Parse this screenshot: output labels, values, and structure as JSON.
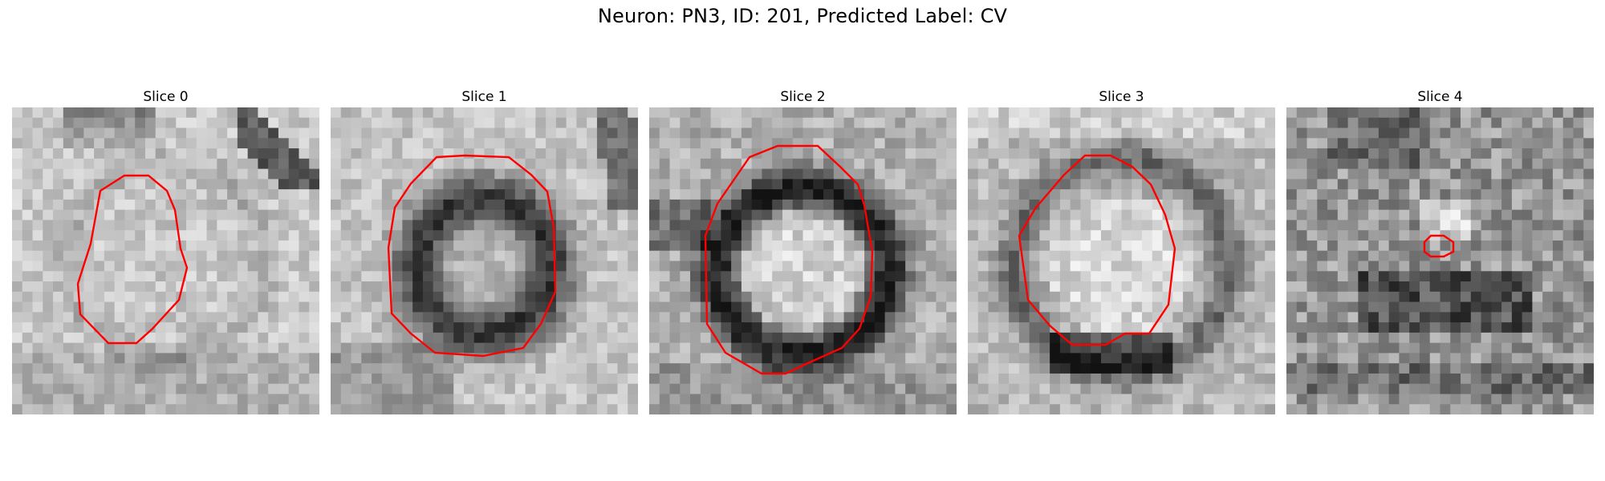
{
  "figure": {
    "title": "Neuron: PN3, ID: 201, Predicted Label: CV"
  },
  "panels": [
    {
      "title": "Slice 0",
      "scene": "faint ring, light interior, dark band top-right"
    },
    {
      "title": "Slice 1",
      "scene": "dark ring around bright core"
    },
    {
      "title": "Slice 2",
      "scene": "thick dark ring around bright interior"
    },
    {
      "title": "Slice 3",
      "scene": "medium ring, dark region at bottom"
    },
    {
      "title": "Slice 4",
      "scene": "noisy texture with small contour"
    }
  ],
  "colors": {
    "contour": "#ff0000",
    "background": "#ffffff"
  }
}
